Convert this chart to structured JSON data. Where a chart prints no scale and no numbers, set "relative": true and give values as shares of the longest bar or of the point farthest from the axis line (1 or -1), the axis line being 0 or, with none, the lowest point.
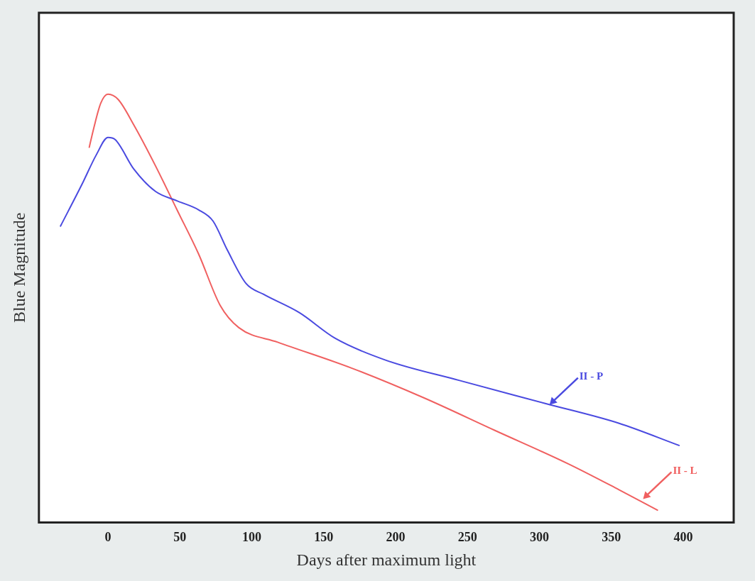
{
  "chart_data": {
    "type": "line",
    "xlabel": "Days after maximum light",
    "ylabel": "Blue Magnitude",
    "relative": true,
    "xlim": [
      -48,
      435
    ],
    "xticks": [
      0,
      50,
      100,
      150,
      200,
      250,
      300,
      350,
      400
    ],
    "grid": false,
    "legend": false,
    "marker": "none",
    "line_style": "solid",
    "series": [
      {
        "color": "#4a4ae0",
        "x": [
          -33,
          -18,
          -8,
          0,
          5,
          18,
          33,
          48,
          63,
          73,
          83,
          96,
          108,
          133,
          158,
          194,
          244,
          304,
          355,
          397
        ],
        "values": [
          0.692,
          0.79,
          0.859,
          0.899,
          0.894,
          0.825,
          0.773,
          0.751,
          0.73,
          0.704,
          0.636,
          0.558,
          0.533,
          0.49,
          0.43,
          0.378,
          0.332,
          0.278,
          0.232,
          0.18
        ]
      },
      {
        "color": "#f06060",
        "x": [
          -13,
          -10,
          -5,
          0,
          7,
          18,
          33,
          48,
          63,
          78,
          91,
          118,
          169,
          219,
          269,
          320,
          355,
          382
        ],
        "values": [
          0.876,
          0.919,
          0.979,
          1.0,
          0.988,
          0.928,
          0.833,
          0.73,
          0.627,
          0.507,
          0.455,
          0.421,
          0.361,
          0.292,
          0.215,
          0.137,
          0.077,
          0.029
        ]
      }
    ],
    "annotations": [
      {
        "text": "II - P",
        "x": 307,
        "y": 0.275
      },
      {
        "text": "II - L",
        "x": 372,
        "y": 0.055
      }
    ]
  }
}
